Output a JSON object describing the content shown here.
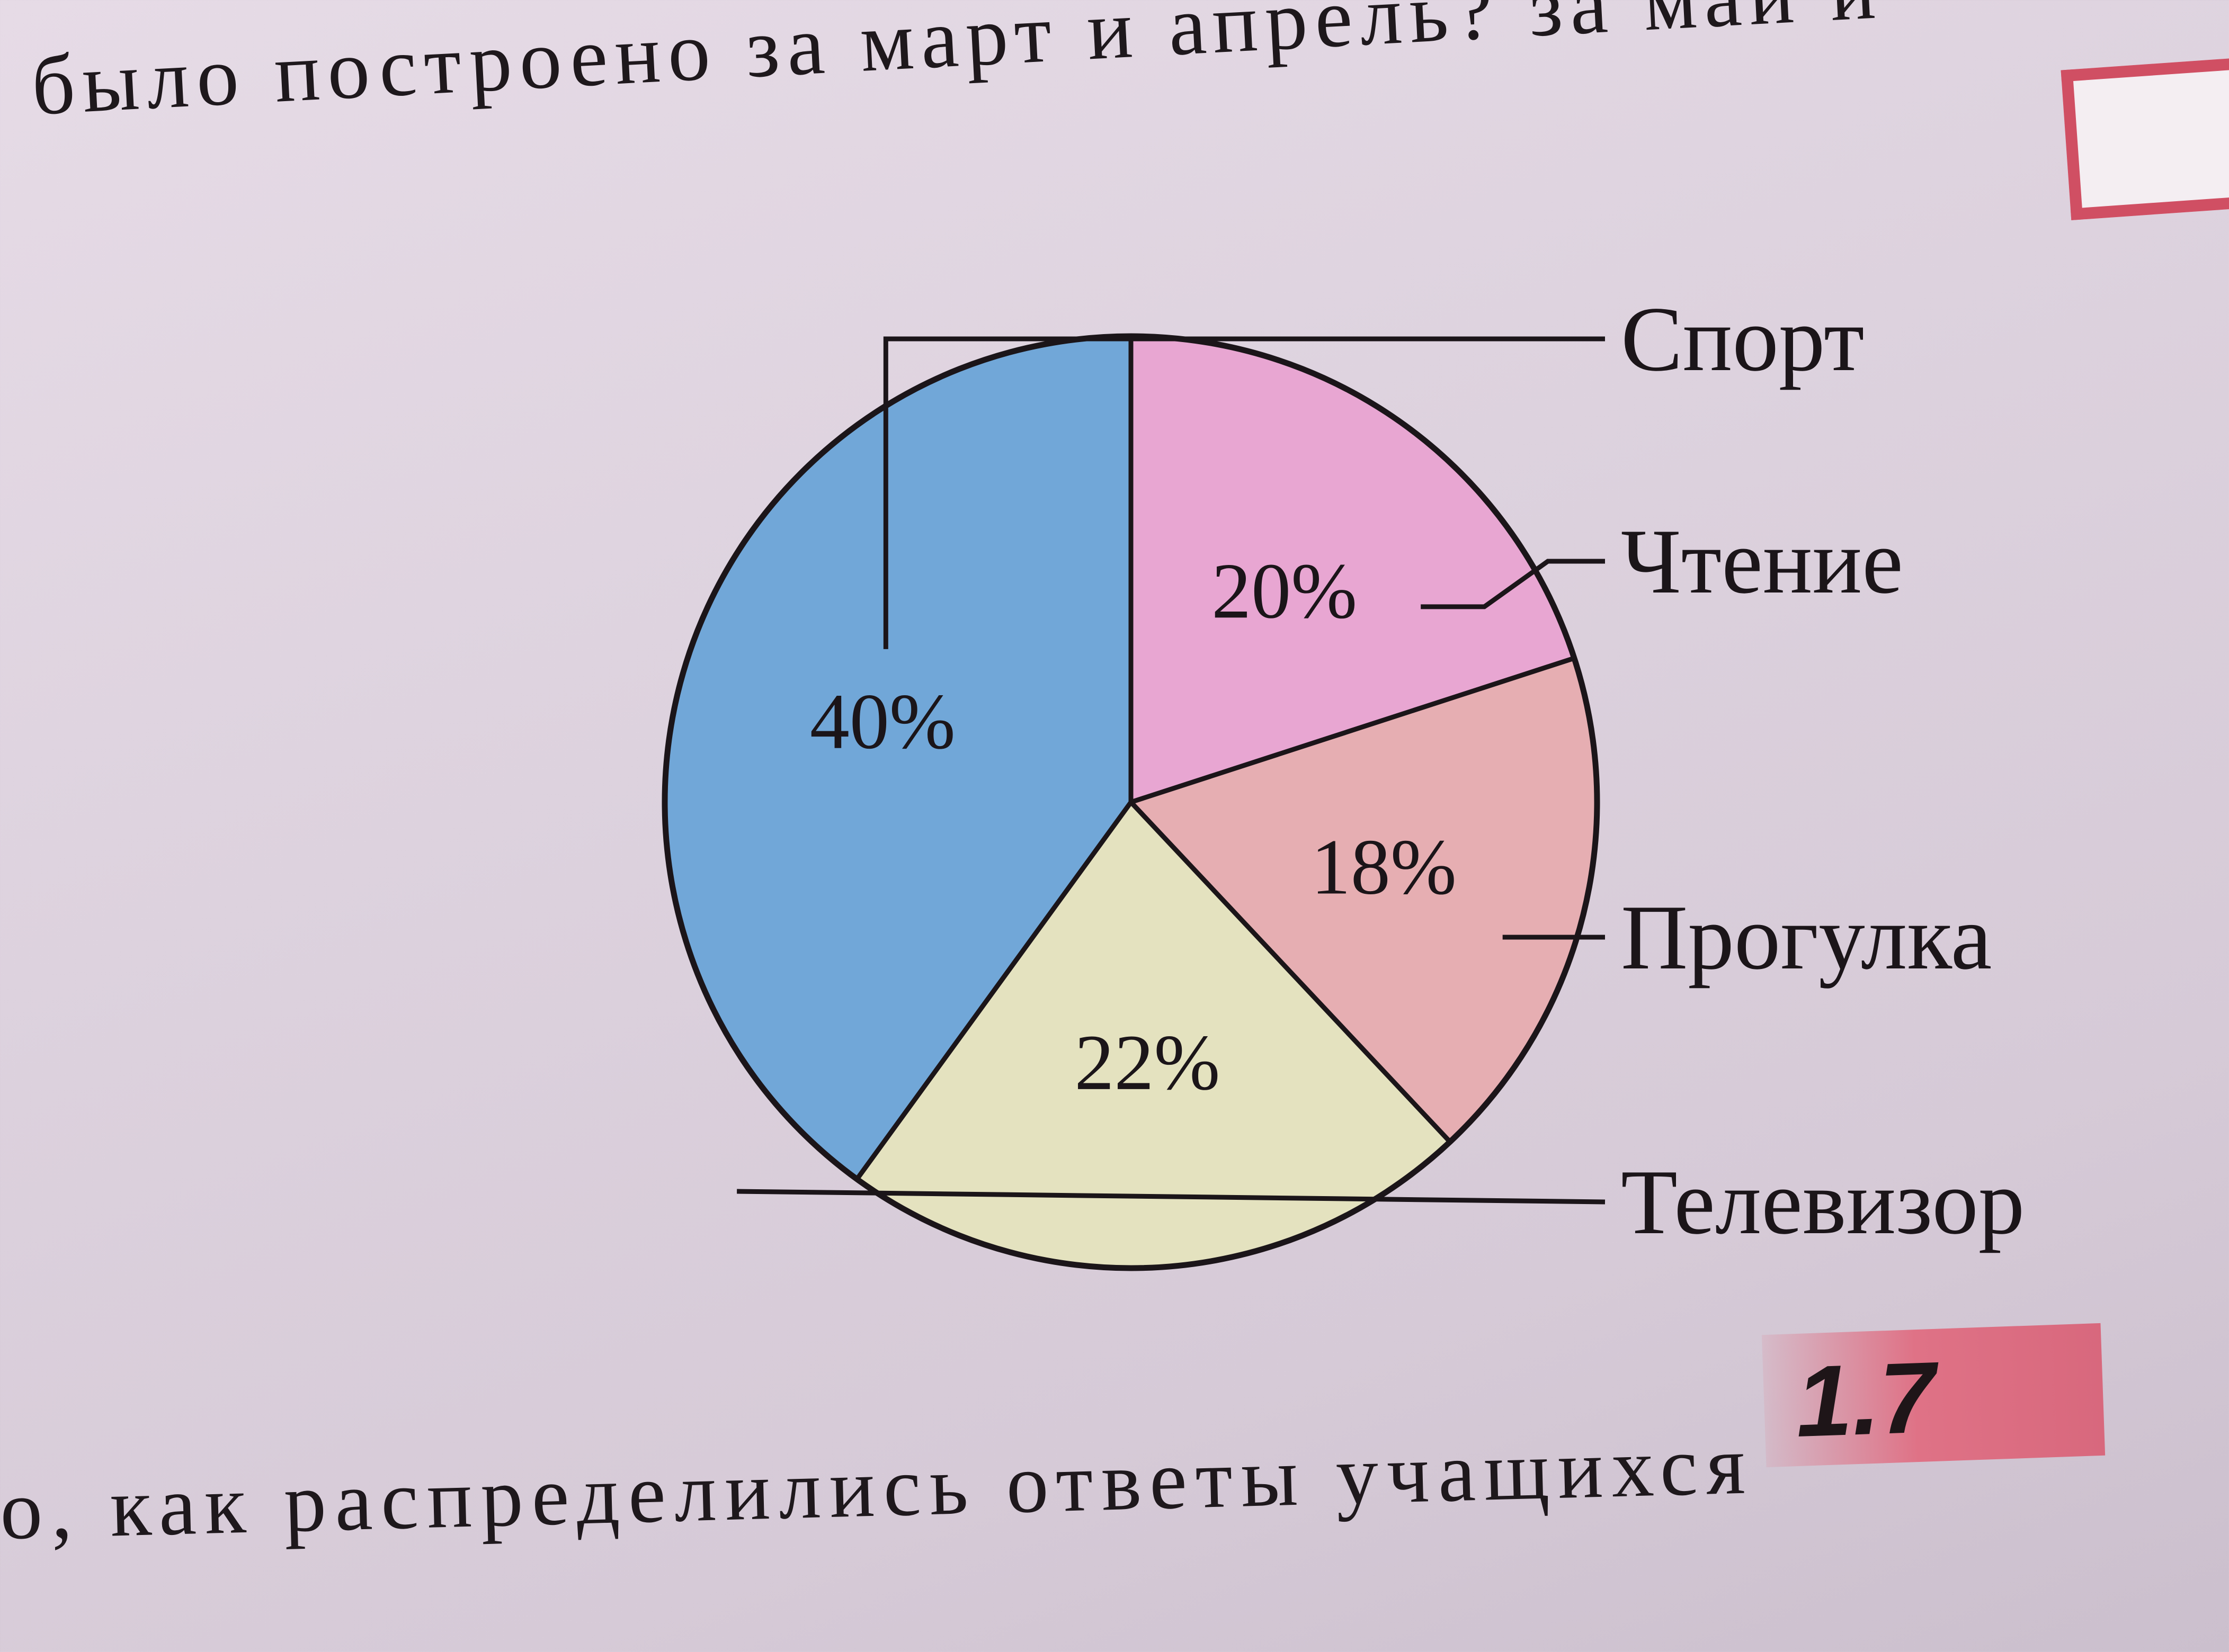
{
  "text": {
    "top": "было построено за март и апрель? за май и",
    "bottom": "о, как распределились ответы учащихся",
    "section_number": "1.7"
  },
  "chart_data": {
    "type": "pie",
    "categories": [
      "Спорт",
      "Чтение",
      "Прогулка",
      "Телевизор"
    ],
    "values": [
      40,
      20,
      18,
      22
    ],
    "value_labels": [
      "40%",
      "20%",
      "18%",
      "22%"
    ],
    "unit": "%",
    "title": "",
    "colors": [
      "#71a7d8",
      "#e8a6d2",
      "#e6aeb2",
      "#e4e2bf"
    ],
    "start_direction": "top",
    "slice_order": "clockwise: Чтение, Прогулка, Телевизор, Спорт"
  }
}
